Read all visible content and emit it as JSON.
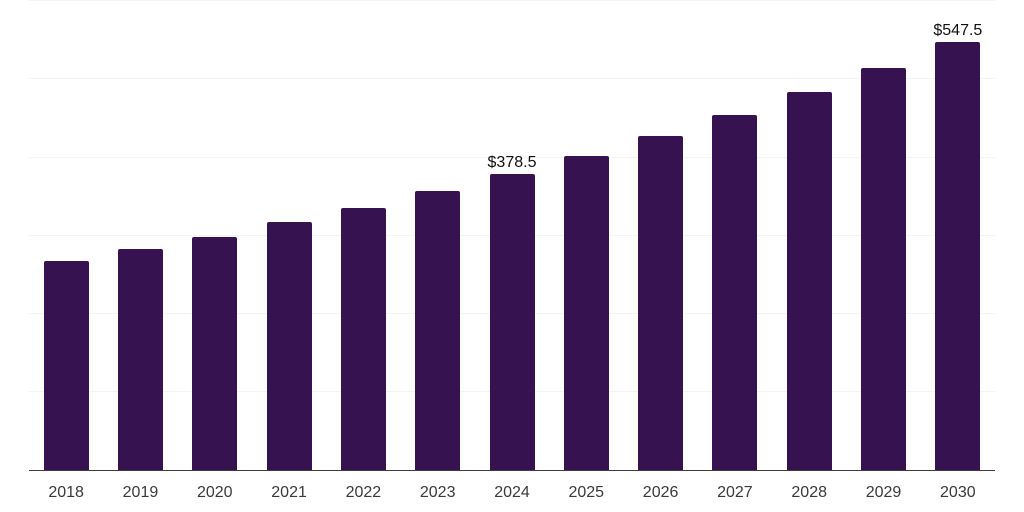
{
  "chart_data": {
    "type": "bar",
    "title": "",
    "xlabel": "",
    "ylabel": "",
    "categories": [
      "2018",
      "2019",
      "2020",
      "2021",
      "2022",
      "2023",
      "2024",
      "2025",
      "2026",
      "2027",
      "2028",
      "2029",
      "2030"
    ],
    "values": [
      267,
      283,
      298,
      318,
      336,
      357,
      378.5,
      402,
      427.5,
      455,
      484,
      514,
      547.5
    ],
    "data_labels": [
      {
        "index": 6,
        "text": "$378.5"
      },
      {
        "index": 12,
        "text": "$547.5"
      }
    ],
    "ylim": [
      0,
      600
    ],
    "gridline_step": 100,
    "grid": "horizontal",
    "legend": "none",
    "y_axis_labels_visible": false,
    "colors": {
      "bar": "#371250",
      "gridline": "#f4f4f6",
      "axis_line": "#3e3e3e",
      "x_tick_label": "#3a3a3a",
      "data_label": "#111111",
      "background": "#ffffff"
    }
  }
}
